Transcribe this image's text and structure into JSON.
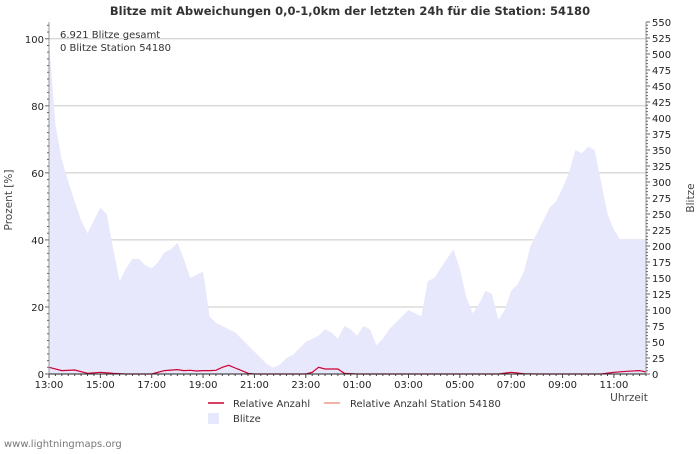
{
  "chart_data": {
    "type": "area",
    "title": "Blitze mit Abweichungen 0,0-1,0km der letzten 24h für die Station: 54180",
    "ylabel_left": "Prozent   [%]",
    "ylabel_right": "Blitze",
    "xlabel": "Uhrzeit",
    "y_left_range": [
      0,
      105
    ],
    "y_left_ticks": [
      0,
      20,
      40,
      60,
      80,
      100
    ],
    "y_right_range": [
      0,
      550
    ],
    "y_right_ticks": [
      0,
      25,
      50,
      75,
      100,
      125,
      150,
      175,
      200,
      225,
      250,
      275,
      300,
      325,
      350,
      375,
      400,
      425,
      450,
      475,
      500,
      525,
      550
    ],
    "x_range_minutes": [
      0,
      1395
    ],
    "x_tick_labels": [
      "13:00",
      "15:00",
      "17:00",
      "19:00",
      "21:00",
      "23:00",
      "01:00",
      "03:00",
      "05:00",
      "07:00",
      "09:00",
      "11:00"
    ],
    "x_tick_step_minutes": 120,
    "interval_minutes": 15,
    "series": [
      {
        "name": "Blitze",
        "axis": "right",
        "color": "#e8e8fc",
        "x_minutes": [
          0,
          15,
          30,
          45,
          60,
          75,
          90,
          105,
          120,
          135,
          150,
          165,
          180,
          195,
          210,
          225,
          240,
          255,
          270,
          285,
          300,
          315,
          330,
          345,
          360,
          375,
          390,
          405,
          420,
          435,
          450,
          465,
          480,
          495,
          510,
          525,
          540,
          555,
          570,
          585,
          600,
          615,
          630,
          645,
          660,
          675,
          690,
          705,
          720,
          735,
          750,
          765,
          780,
          795,
          810,
          825,
          840,
          855,
          870,
          885,
          900,
          915,
          930,
          945,
          960,
          975,
          990,
          1005,
          1020,
          1035,
          1050,
          1065,
          1080,
          1095,
          1110,
          1125,
          1140,
          1155,
          1170,
          1185,
          1200,
          1215,
          1230,
          1245,
          1260,
          1275,
          1290,
          1305,
          1320,
          1335,
          1350,
          1365,
          1380,
          1395
        ],
        "values": [
          520,
          390,
          335,
          300,
          270,
          240,
          220,
          240,
          260,
          250,
          195,
          145,
          165,
          180,
          180,
          170,
          165,
          175,
          190,
          195,
          205,
          180,
          150,
          155,
          160,
          90,
          80,
          75,
          70,
          65,
          55,
          45,
          35,
          25,
          15,
          10,
          15,
          25,
          30,
          40,
          50,
          55,
          60,
          70,
          65,
          55,
          75,
          70,
          60,
          75,
          70,
          45,
          55,
          70,
          80,
          90,
          100,
          95,
          90,
          145,
          150,
          165,
          180,
          195,
          165,
          120,
          95,
          110,
          130,
          125,
          85,
          100,
          130,
          140,
          160,
          200,
          220,
          240,
          260,
          270,
          290,
          315,
          350,
          345,
          355,
          350,
          300,
          250,
          225,
          210,
          210,
          210,
          210,
          210
        ]
      },
      {
        "name": "Relative Anzahl",
        "axis": "left",
        "color": "#cc0033",
        "x_minutes": [
          0,
          30,
          60,
          90,
          120,
          150,
          180,
          210,
          240,
          270,
          300,
          315,
          330,
          345,
          360,
          375,
          390,
          405,
          420,
          435,
          450,
          465,
          480,
          510,
          540,
          570,
          600,
          615,
          630,
          645,
          660,
          675,
          690,
          720,
          750,
          780,
          810,
          840,
          870,
          900,
          930,
          960,
          990,
          1020,
          1050,
          1080,
          1110,
          1140,
          1170,
          1200,
          1230,
          1260,
          1290,
          1320,
          1350,
          1380,
          1395
        ],
        "values": [
          2.0,
          1.0,
          1.2,
          0.2,
          0.5,
          0.2,
          0.0,
          0.0,
          0.0,
          1.0,
          1.3,
          1.0,
          1.1,
          0.9,
          1.0,
          1.0,
          1.1,
          2.0,
          2.6,
          1.8,
          1.0,
          0.2,
          0.0,
          0.0,
          0.0,
          0.0,
          0.0,
          0.5,
          2.0,
          1.5,
          1.5,
          1.5,
          0.2,
          0.0,
          0.0,
          0.0,
          0.0,
          0.0,
          0.0,
          0.0,
          0.0,
          0.0,
          0.0,
          0.0,
          0.0,
          0.5,
          0.1,
          0.0,
          0.0,
          0.0,
          0.0,
          0.0,
          0.0,
          0.5,
          0.8,
          1.0,
          0.6
        ]
      },
      {
        "name": "Relative Anzahl Station 54180",
        "axis": "left",
        "color": "#ee9988",
        "x_minutes": [
          0,
          1395
        ],
        "values": [
          0,
          0
        ]
      }
    ],
    "annotations": [
      "6.921 Blitze gesamt",
      "0 Blitze Station 54180"
    ],
    "legend": [
      "Relative Anzahl",
      "Relative Anzahl Station 54180",
      "Blitze"
    ],
    "legend_position": "bottom"
  },
  "footer": "www.lightningmaps.org"
}
